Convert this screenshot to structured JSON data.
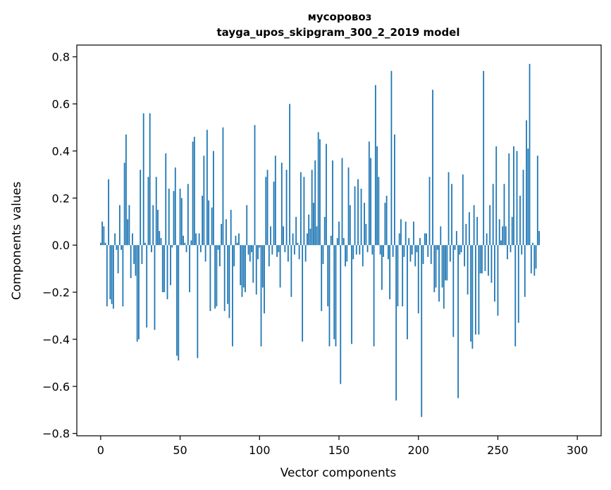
{
  "chart_data": {
    "type": "bar",
    "title": "мусоровоз",
    "subtitle": "tayga_upos_skipgram_300_2_2019 model",
    "xlabel": "Vector components",
    "ylabel": "Components values",
    "xlim": [
      -15,
      315
    ],
    "ylim": [
      -0.81,
      0.85
    ],
    "xticks": [
      0,
      50,
      100,
      150,
      200,
      250,
      300
    ],
    "xtick_labels": [
      "0",
      "50",
      "100",
      "150",
      "200",
      "250",
      "300"
    ],
    "yticks": [
      -0.8,
      -0.6,
      -0.4,
      -0.2,
      0.0,
      0.2,
      0.4,
      0.6,
      0.8
    ],
    "ytick_labels": [
      "−0.8",
      "−0.6",
      "−0.4",
      "−0.2",
      "0.0",
      "0.2",
      "0.4",
      "0.6",
      "0.8"
    ],
    "bar_color": "#1f77b4",
    "grid": false,
    "values": [
      0.01,
      0.1,
      0.08,
      0.01,
      -0.26,
      0.28,
      -0.23,
      -0.25,
      -0.27,
      0.05,
      -0.02,
      -0.12,
      0.17,
      -0.02,
      -0.26,
      0.35,
      0.47,
      0.11,
      0.17,
      -0.14,
      0.05,
      -0.08,
      -0.13,
      -0.41,
      -0.4,
      0.32,
      -0.08,
      0.56,
      0.01,
      -0.35,
      0.29,
      0.56,
      -0.03,
      0.17,
      -0.36,
      0.29,
      0.15,
      0.06,
      0.03,
      -0.2,
      -0.2,
      0.39,
      -0.23,
      0.24,
      -0.17,
      -0.01,
      0.23,
      0.33,
      -0.47,
      -0.49,
      0.24,
      0.2,
      0.04,
      0.01,
      -0.03,
      0.26,
      -0.2,
      0.02,
      0.44,
      0.46,
      0.05,
      -0.48,
      0.05,
      -0.03,
      0.21,
      0.38,
      -0.07,
      0.49,
      0.19,
      -0.28,
      0.16,
      0.4,
      -0.27,
      -0.26,
      -0.02,
      -0.09,
      0.09,
      0.5,
      -0.28,
      0.11,
      -0.25,
      -0.31,
      0.15,
      -0.43,
      -0.09,
      0.04,
      0.01,
      0.05,
      -0.17,
      -0.22,
      -0.18,
      -0.2,
      0.17,
      -0.04,
      -0.07,
      -0.03,
      -0.16,
      0.51,
      -0.21,
      -0.06,
      -0.01,
      -0.43,
      -0.18,
      -0.29,
      0.29,
      0.32,
      -0.09,
      0.08,
      -0.04,
      0.27,
      0.38,
      -0.05,
      -0.03,
      -0.18,
      0.35,
      0.08,
      -0.03,
      0.32,
      -0.07,
      0.6,
      -0.22,
      0.05,
      -0.04,
      0.12,
      0.01,
      -0.06,
      0.31,
      -0.41,
      0.29,
      -0.07,
      0.05,
      0.13,
      0.07,
      0.32,
      0.18,
      0.36,
      0.08,
      0.48,
      0.45,
      -0.28,
      -0.08,
      0.12,
      0.43,
      -0.26,
      -0.43,
      0.04,
      0.36,
      -0.4,
      -0.43,
      0.03,
      0.1,
      -0.59,
      0.37,
      0.03,
      -0.09,
      -0.07,
      0.33,
      0.17,
      -0.42,
      -0.06,
      0.25,
      -0.04,
      0.28,
      -0.04,
      0.24,
      -0.09,
      0.18,
      0.09,
      -0.03,
      0.44,
      0.37,
      -0.04,
      -0.43,
      0.68,
      0.42,
      0.29,
      -0.04,
      -0.19,
      -0.05,
      0.18,
      0.21,
      -0.06,
      -0.23,
      0.74,
      -0.05,
      0.47,
      -0.66,
      -0.26,
      0.05,
      0.11,
      -0.26,
      -0.05,
      0.1,
      -0.4,
      0.03,
      -0.07,
      -0.04,
      0.1,
      -0.09,
      -0.03,
      -0.29,
      0.03,
      -0.73,
      -0.08,
      0.05,
      0.05,
      -0.05,
      0.29,
      -0.08,
      0.66,
      -0.2,
      -0.18,
      -0.02,
      -0.24,
      0.08,
      -0.18,
      -0.27,
      -0.15,
      -0.15,
      0.31,
      -0.07,
      0.26,
      -0.39,
      -0.02,
      0.06,
      -0.65,
      -0.04,
      -0.03,
      0.3,
      -0.09,
      0.09,
      -0.21,
      0.14,
      -0.41,
      -0.44,
      0.17,
      -0.38,
      0.12,
      -0.38,
      -0.12,
      -0.12,
      0.74,
      -0.11,
      0.05,
      -0.13,
      0.17,
      -0.16,
      0.26,
      -0.24,
      0.42,
      -0.3,
      0.11,
      0.02,
      0.08,
      0.26,
      0.08,
      -0.06,
      0.39,
      -0.03,
      0.12,
      0.42,
      -0.43,
      0.4,
      -0.33,
      0.21,
      -0.04,
      0.32,
      -0.22,
      0.53,
      0.41,
      0.77,
      -0.12,
      0.01,
      -0.13,
      -0.1,
      0.38,
      0.06
    ]
  }
}
